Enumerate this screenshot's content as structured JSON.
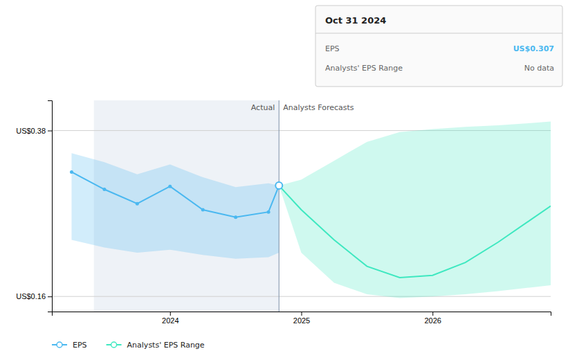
{
  "chart_data": {
    "type": "line",
    "xlim": [
      2023.1,
      2026.9
    ],
    "xticks": [
      2024,
      2025,
      2026
    ],
    "ylim": [
      0.14,
      0.42
    ],
    "yticks": [
      {
        "value": 0.38,
        "label": "US$0.38"
      },
      {
        "value": 0.16,
        "label": "US$0.16"
      }
    ],
    "grid": true,
    "legend": "lower left",
    "series": [
      {
        "name": "EPS",
        "color": "#4ab8f0",
        "marker": "circle",
        "x": [
          2023.25,
          2023.5,
          2023.75,
          2024.0,
          2024.25,
          2024.5,
          2024.75,
          2024.83
        ],
        "values": [
          0.325,
          0.302,
          0.283,
          0.306,
          0.275,
          0.265,
          0.272,
          0.307
        ],
        "upper": [
          0.35,
          0.338,
          0.322,
          0.335,
          0.318,
          0.305,
          0.31,
          0.307
        ],
        "lower": [
          0.235,
          0.225,
          0.218,
          0.222,
          0.215,
          0.21,
          0.212,
          0.218
        ]
      },
      {
        "name": "Analysts' EPS Range",
        "color": "#3ee8c0",
        "x": [
          2024.83,
          2025.0,
          2025.25,
          2025.5,
          2025.75,
          2026.0,
          2026.25,
          2026.5,
          2026.75,
          2026.9
        ],
        "values": [
          0.307,
          0.275,
          0.235,
          0.2,
          0.185,
          0.188,
          0.205,
          0.232,
          0.262,
          0.28
        ],
        "upper": [
          0.307,
          0.315,
          0.34,
          0.365,
          0.378,
          0.382,
          0.385,
          0.387,
          0.39,
          0.392
        ],
        "lower": [
          0.307,
          0.218,
          0.178,
          0.163,
          0.158,
          0.16,
          0.163,
          0.167,
          0.172,
          0.175
        ]
      }
    ],
    "divider": {
      "x": 2024.83,
      "shaded_from": 2023.42,
      "labels": [
        "Actual",
        "Analysts Forecasts"
      ]
    },
    "highlight": {
      "x": 2024.83,
      "y": 0.307
    },
    "tooltip": {
      "title": "Oct 31 2024",
      "rows": [
        {
          "label": "EPS",
          "value": "US$0.307",
          "color": "#4ab8f0"
        },
        {
          "label": "Analysts' EPS Range",
          "value": "No data",
          "color": "#666666"
        }
      ]
    }
  }
}
